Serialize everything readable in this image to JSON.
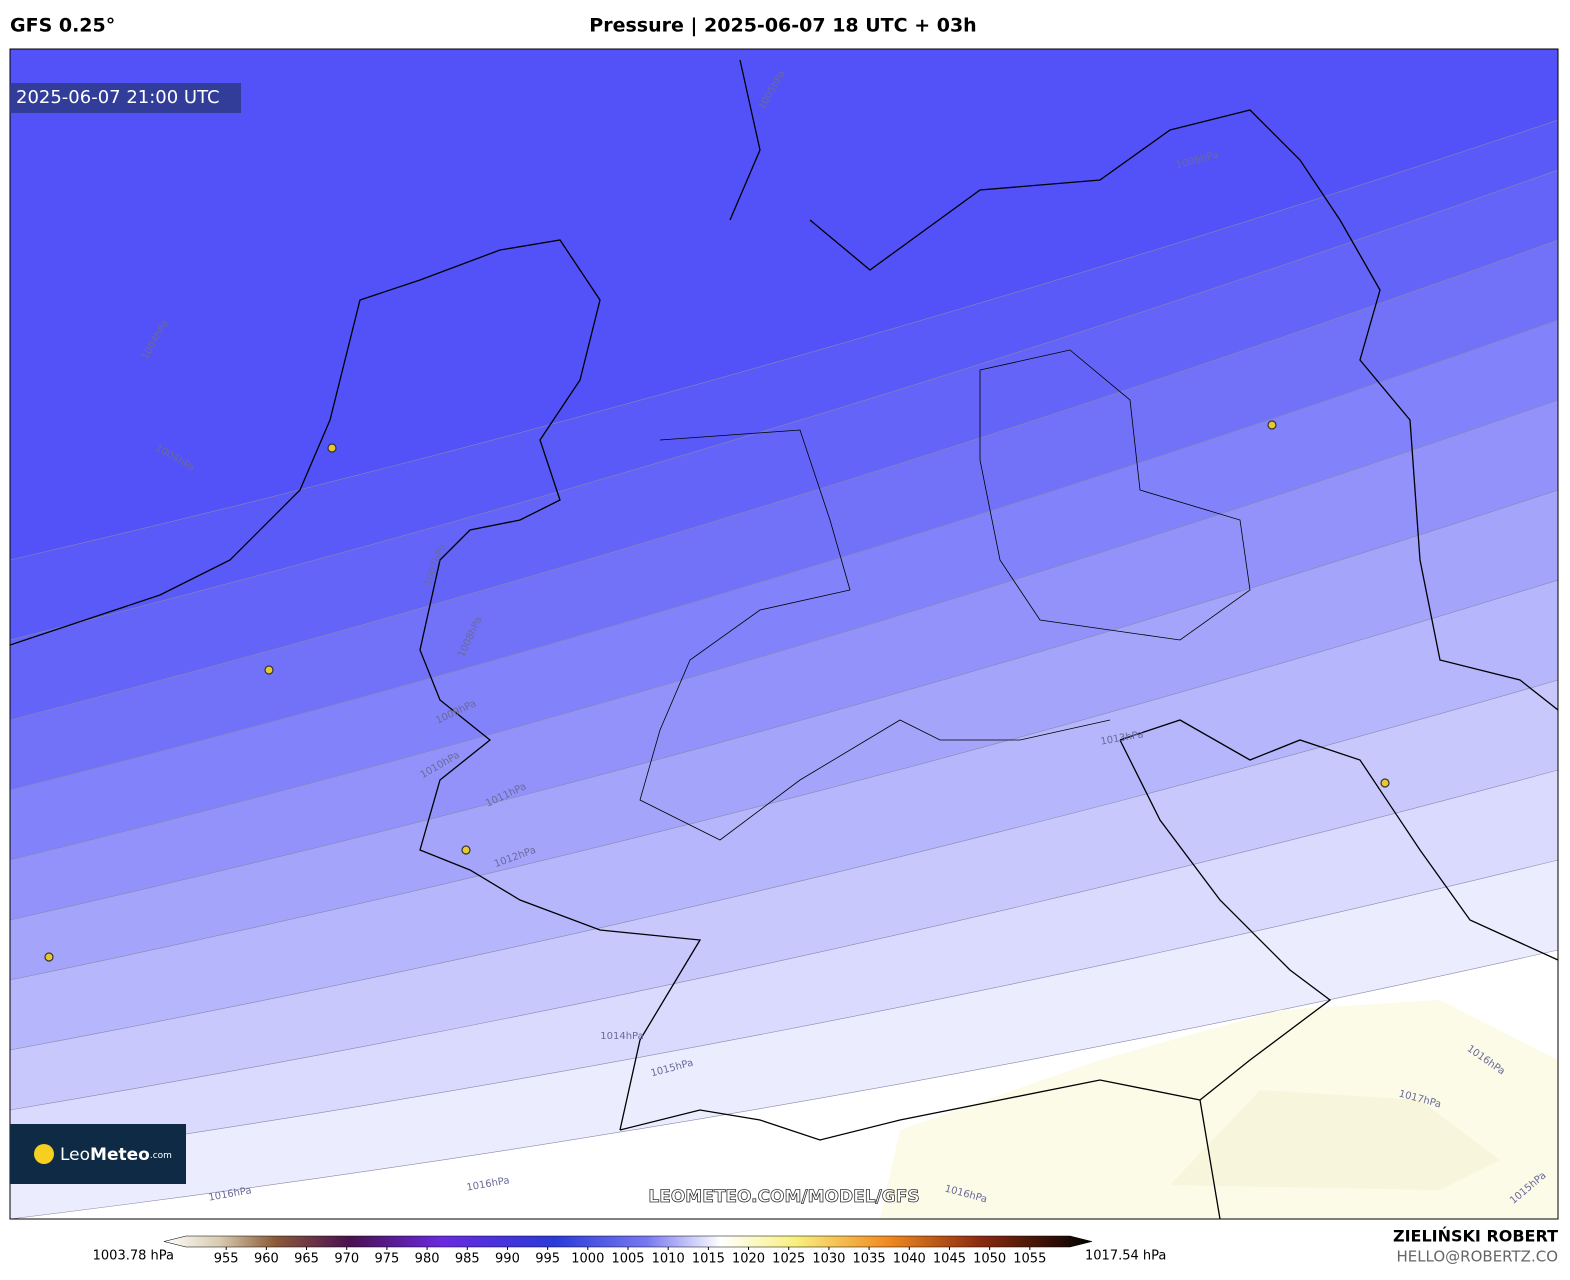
{
  "header": {
    "model": "GFS 0.25°",
    "title": "Pressure | 2025-06-07 18 UTC + 03h"
  },
  "map": {
    "valid_time": "2025-06-07 21:00 UTC",
    "isobar_labels": [
      "1004hPa",
      "1004hPa",
      "1005hPa",
      "1006hPa",
      "1007hPa",
      "1008hPa",
      "1009hPa",
      "1010hPa",
      "1011hPa",
      "1012hPa",
      "1013hPa",
      "1014hPa",
      "1015hPa",
      "1016hPa",
      "1016hPa",
      "1016hPa",
      "1016hPa",
      "1017hPa",
      "1015hPa"
    ],
    "logo": {
      "brand": "Leo",
      "brand_bold": "Meteo",
      "suffix": ".com"
    },
    "watermark": "LEOMETEO.COM/MODEL/GFS"
  },
  "colorbar": {
    "min_label": "1003.78 hPa",
    "max_label": "1017.54 hPa",
    "range": [
      950,
      1060
    ],
    "ticks": [
      955,
      960,
      965,
      970,
      975,
      980,
      985,
      990,
      995,
      1000,
      1005,
      1010,
      1015,
      1020,
      1025,
      1030,
      1035,
      1040,
      1045,
      1050,
      1055
    ]
  },
  "credits": {
    "author": "ZIELIŃSKI ROBERT",
    "email": "HELLO@ROBERTZ.CO"
  }
}
